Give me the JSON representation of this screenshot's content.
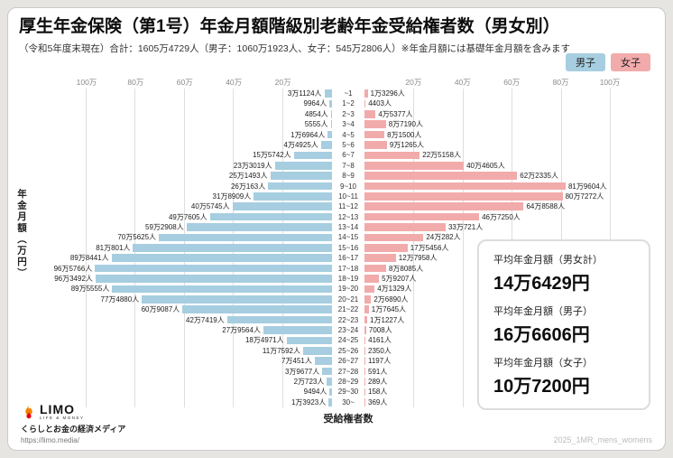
{
  "header": {
    "title": "厚生年金保険（第1号）年金月額階級別老齢年金受給権者数（男女別）",
    "subtitle": "（令和5年度末現在）合計：1605万4729人（男子：1060万1923人、女子：545万2806人）※年金月額には基礎年金月額を含みます"
  },
  "legend": {
    "male": "男子",
    "female": "女子"
  },
  "colors": {
    "male": "#a6cee0",
    "female": "#f2abab",
    "gridline": "#dedede"
  },
  "chart_data": {
    "type": "bar",
    "variant": "population-pyramid",
    "title": "厚生年金保険（第1号）年金月額階級別老齢年金受給権者数（男女別）",
    "xlabel": "受給権者数",
    "ylabel": "年金月額（万円）",
    "scale_max": 1180000,
    "grid": true,
    "ticks": [
      {
        "value": 200000,
        "label": "20万"
      },
      {
        "value": 400000,
        "label": "40万"
      },
      {
        "value": 600000,
        "label": "60万"
      },
      {
        "value": 800000,
        "label": "80万"
      },
      {
        "value": 1000000,
        "label": "100万"
      }
    ],
    "categories": [
      "~1",
      "1~2",
      "2~3",
      "3~4",
      "4~5",
      "5~6",
      "6~7",
      "7~8",
      "8~9",
      "9~10",
      "10~11",
      "11~12",
      "12~13",
      "13~14",
      "14~15",
      "15~16",
      "16~17",
      "17~18",
      "18~19",
      "19~20",
      "20~21",
      "21~22",
      "22~23",
      "23~24",
      "24~25",
      "25~26",
      "26~27",
      "27~28",
      "28~29",
      "29~30",
      "30~"
    ],
    "series": [
      {
        "name": "男子",
        "color": "#a6cee0",
        "values": [
          31124,
          9964,
          4854,
          5555,
          16964,
          44925,
          155742,
          233019,
          251493,
          260163,
          318909,
          405745,
          497605,
          592908,
          705625,
          810801,
          898441,
          965766,
          963492,
          895555,
          774880,
          609087,
          427419,
          279564,
          184971,
          117592,
          70451,
          39677,
          20723,
          9494,
          13923
        ],
        "labels": [
          "3万1124人",
          "9964人",
          "4854人",
          "5555人",
          "1万6964人",
          "4万4925人",
          "15万5742人",
          "23万3019人",
          "25万1493人",
          "26万163人",
          "31万8909人",
          "40万5745人",
          "49万7605人",
          "59万2908人",
          "70万5625人",
          "81万801人",
          "89万8441人",
          "96万5766人",
          "96万3492人",
          "89万5555人",
          "77万4880人",
          "60万9087人",
          "42万7419人",
          "27万9564人",
          "18万4971人",
          "11万7592人",
          "7万451人",
          "3万9677人",
          "2万723人",
          "9494人",
          "1万3923人"
        ]
      },
      {
        "name": "女子",
        "color": "#f2abab",
        "values": [
          13296,
          4403,
          45377,
          87190,
          81500,
          91265,
          225158,
          404605,
          622335,
          819604,
          807272,
          648588,
          467250,
          330721,
          240282,
          175456,
          127958,
          88085,
          59207,
          41329,
          26890,
          17645,
          11227,
          7008,
          4161,
          2350,
          1197,
          591,
          289,
          158,
          369
        ],
        "labels": [
          "1万3296人",
          "4403人",
          "4万5377人",
          "8万7190人",
          "8万1500人",
          "9万1265人",
          "22万5158人",
          "40万4605人",
          "62万2335人",
          "81万9604人",
          "80万7272人",
          "64万8588人",
          "46万7250人",
          "33万721人",
          "24万282人",
          "17万5456人",
          "12万7958人",
          "8万8085人",
          "5万9207人",
          "4万1329人",
          "2万6890人",
          "1万7645人",
          "1万1227人",
          "7008人",
          "4161人",
          "2350人",
          "1197人",
          "591人",
          "289人",
          "158人",
          "369人"
        ]
      }
    ]
  },
  "averages": [
    {
      "label": "平均年金月額（男女計）",
      "value": "14万6429円"
    },
    {
      "label": "平均年金月額（男子）",
      "value": "16万6606円"
    },
    {
      "label": "平均年金月額（女子）",
      "value": "10万7200円"
    }
  ],
  "footer": {
    "logo": "LIMO",
    "logo_sub": "LIFE & MONEY",
    "tagline": "くらしとお金の経済メディア",
    "url": "https://limo.media/",
    "watermark": "2025_1MR_mens_womens"
  }
}
